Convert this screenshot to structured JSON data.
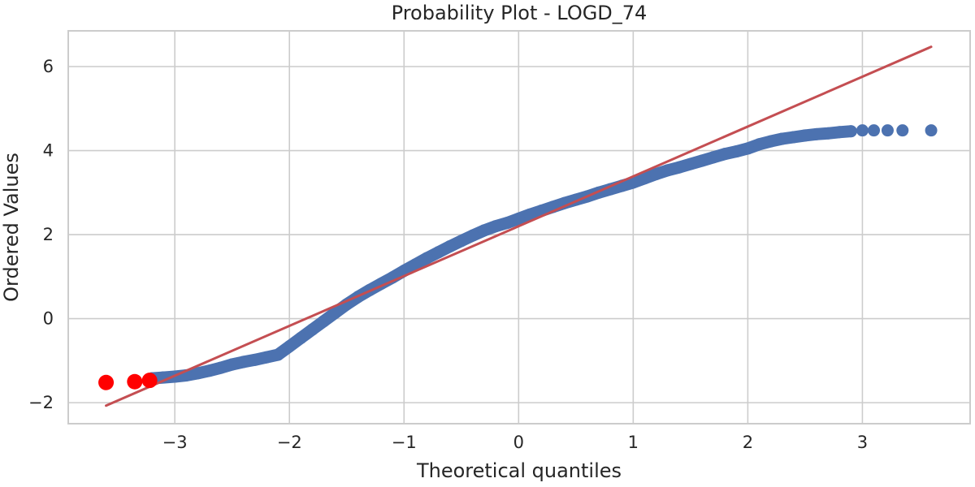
{
  "chart_data": {
    "type": "scatter",
    "title": "Probability Plot - LOGD_74",
    "xlabel": "Theoretical quantiles",
    "ylabel": "Ordered Values",
    "xlim": [
      -3.93,
      3.94
    ],
    "ylim": [
      -2.5,
      6.85
    ],
    "xticks": [
      -3,
      -2,
      -1,
      0,
      1,
      2,
      3
    ],
    "xtick_labels": [
      "−3",
      "−2",
      "−1",
      "0",
      "1",
      "2",
      "3"
    ],
    "yticks": [
      -2,
      0,
      2,
      4,
      6
    ],
    "ytick_labels": [
      "−2",
      "0",
      "2",
      "4",
      "6"
    ],
    "grid": true,
    "legend": false,
    "series": [
      {
        "kind": "points",
        "color": "#4c72b0",
        "x": [
          -3.2,
          -3.1,
          -3.0,
          -2.9,
          -2.8,
          -2.7,
          -2.6,
          -2.5,
          -2.4,
          -2.3,
          -2.2,
          -2.1,
          -2.0,
          -1.9,
          -1.8,
          -1.7,
          -1.6,
          -1.5,
          -1.4,
          -1.3,
          -1.2,
          -1.1,
          -1.0,
          -0.9,
          -0.8,
          -0.7,
          -0.6,
          -0.5,
          -0.4,
          -0.3,
          -0.2,
          -0.1,
          0.0,
          0.1,
          0.2,
          0.3,
          0.4,
          0.5,
          0.6,
          0.7,
          0.8,
          0.9,
          1.0,
          1.1,
          1.2,
          1.3,
          1.4,
          1.5,
          1.6,
          1.7,
          1.8,
          1.9,
          2.0,
          2.1,
          2.2,
          2.3,
          2.4,
          2.5,
          2.6,
          2.7,
          2.8,
          2.9,
          3.0,
          3.1,
          3.22,
          3.35,
          3.6
        ],
        "y": [
          -1.42,
          -1.4,
          -1.38,
          -1.35,
          -1.3,
          -1.24,
          -1.17,
          -1.09,
          -1.03,
          -0.98,
          -0.92,
          -0.86,
          -0.66,
          -0.46,
          -0.26,
          -0.06,
          0.14,
          0.34,
          0.52,
          0.68,
          0.83,
          0.98,
          1.14,
          1.29,
          1.44,
          1.58,
          1.72,
          1.85,
          1.98,
          2.1,
          2.2,
          2.28,
          2.38,
          2.48,
          2.57,
          2.66,
          2.75,
          2.83,
          2.91,
          3.0,
          3.08,
          3.16,
          3.24,
          3.34,
          3.44,
          3.53,
          3.6,
          3.68,
          3.76,
          3.84,
          3.92,
          3.98,
          4.05,
          4.15,
          4.22,
          4.28,
          4.32,
          4.36,
          4.39,
          4.41,
          4.44,
          4.46,
          4.48,
          4.48,
          4.48,
          4.48,
          4.48
        ]
      },
      {
        "kind": "outliers",
        "color": "#ff0000",
        "x": [
          -3.6,
          -3.35,
          -3.22
        ],
        "y": [
          -1.52,
          -1.5,
          -1.47
        ]
      },
      {
        "kind": "fit-line",
        "color": "#c44e52",
        "x": [
          -3.6,
          3.6
        ],
        "y": [
          -2.07,
          6.47
        ]
      }
    ]
  }
}
